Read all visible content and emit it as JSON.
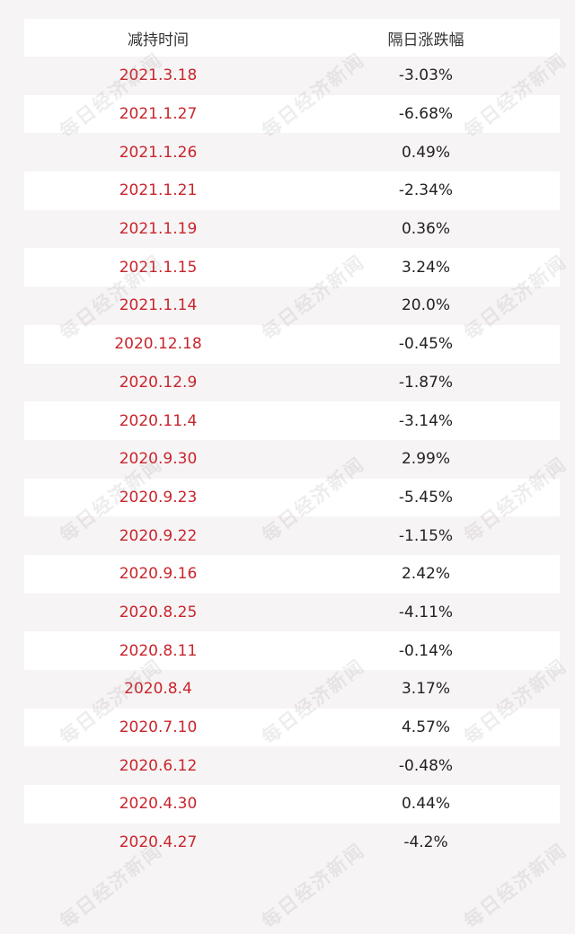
{
  "table": {
    "headers": [
      "减持时间",
      "隔日涨跌幅"
    ],
    "rows": [
      {
        "date": "2021.3.18",
        "change": "-3.03%"
      },
      {
        "date": "2021.1.27",
        "change": "-6.68%"
      },
      {
        "date": "2021.1.26",
        "change": "0.49%"
      },
      {
        "date": "2021.1.21",
        "change": "-2.34%"
      },
      {
        "date": "2021.1.19",
        "change": "0.36%"
      },
      {
        "date": "2021.1.15",
        "change": "3.24%"
      },
      {
        "date": "2021.1.14",
        "change": "20.0%"
      },
      {
        "date": "2020.12.18",
        "change": "-0.45%"
      },
      {
        "date": "2020.12.9",
        "change": "-1.87%"
      },
      {
        "date": "2020.11.4",
        "change": "-3.14%"
      },
      {
        "date": "2020.9.30",
        "change": "2.99%"
      },
      {
        "date": "2020.9.23",
        "change": "-5.45%"
      },
      {
        "date": "2020.9.22",
        "change": "-1.15%"
      },
      {
        "date": "2020.9.16",
        "change": "2.42%"
      },
      {
        "date": "2020.8.25",
        "change": "-4.11%"
      },
      {
        "date": "2020.8.11",
        "change": "-0.14%"
      },
      {
        "date": "2020.8.4",
        "change": "3.17%"
      },
      {
        "date": "2020.7.10",
        "change": "4.57%"
      },
      {
        "date": "2020.6.12",
        "change": "-0.48%"
      },
      {
        "date": "2020.4.30",
        "change": "0.44%"
      },
      {
        "date": "2020.4.27",
        "change": "-4.2%"
      }
    ]
  },
  "watermark": {
    "text": "每日经济新闻"
  },
  "colors": {
    "date_text": "#c8252c",
    "value_text": "#222222",
    "stripe_light": "#ffffff",
    "stripe_tint": "#f7f4f5"
  }
}
